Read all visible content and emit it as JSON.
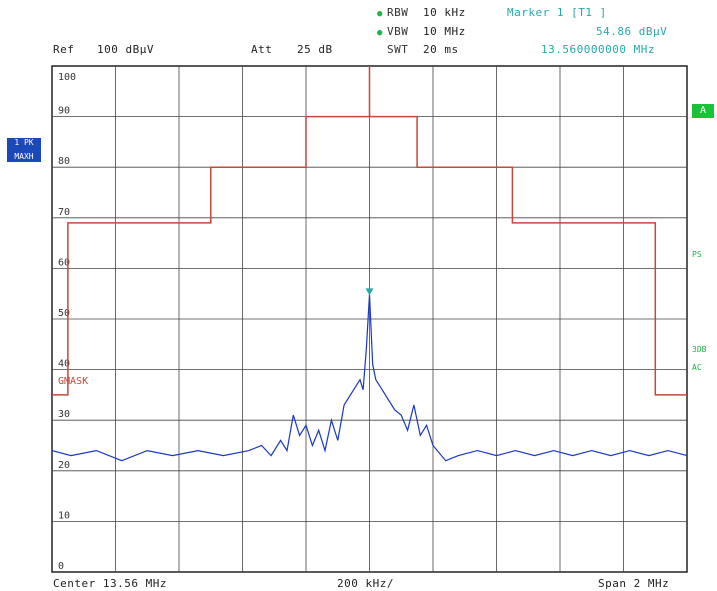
{
  "header": {
    "rbw_label": "RBW",
    "rbw_value": "10 kHz",
    "vbw_label": "VBW",
    "vbw_value": "10 MHz",
    "swt_label": "SWT",
    "swt_value": "20 ms",
    "ref_label": "Ref",
    "ref_value": "100 dBµV",
    "att_label": "Att",
    "att_value": "25 dB",
    "marker_title": "Marker 1 [T1 ]",
    "marker_level": "54.86 dBµV",
    "marker_freq": "13.560000000 MHz"
  },
  "sidebar_left": {
    "trace_label_1": "1 PK",
    "trace_label_2": "MAXH"
  },
  "sidebar_right": {
    "a_label": "A",
    "ps_label": "PS",
    "thirddb_label": "3DB",
    "ac_label": "AC"
  },
  "footer": {
    "center": "Center 13.56 MHz",
    "div": "200 kHz/",
    "span": "Span 2 MHz"
  },
  "mask_label": "GMASK",
  "colors": {
    "trace": "#1a38c0",
    "mask": "#c8473a",
    "marker": "#2aa7a7",
    "grid": "#333333"
  },
  "chart_data": {
    "type": "line",
    "title": "",
    "xlabel": "",
    "ylabel": "",
    "x_range_mhz": [
      12.56,
      14.56
    ],
    "ylim": [
      0,
      100
    ],
    "y_ticks": [
      100,
      90,
      80,
      70,
      60,
      50,
      40,
      30,
      20,
      10,
      0
    ],
    "y_tick_labels": [
      "100",
      "90",
      "80",
      "70",
      "60",
      "50",
      "40",
      "30",
      "20",
      "10",
      "0"
    ],
    "grid": true,
    "marker": {
      "x_mhz": 13.56,
      "y": 54.86
    },
    "series": [
      {
        "role": "mask",
        "x_mhz": [
          12.56,
          12.61,
          12.61,
          13.06,
          13.06,
          13.36,
          13.36,
          13.56,
          13.56,
          13.56,
          13.56,
          13.71,
          13.71,
          14.01,
          14.01,
          14.46,
          14.46,
          14.56
        ],
        "y": [
          35,
          35,
          69,
          69,
          80,
          80,
          90,
          90,
          100,
          100,
          90,
          90,
          80,
          80,
          69,
          69,
          35,
          35
        ]
      },
      {
        "role": "trace",
        "x_mhz": [
          12.56,
          12.62,
          12.7,
          12.78,
          12.86,
          12.94,
          13.02,
          13.1,
          13.18,
          13.22,
          13.25,
          13.28,
          13.3,
          13.32,
          13.34,
          13.36,
          13.38,
          13.4,
          13.42,
          13.44,
          13.46,
          13.48,
          13.5,
          13.52,
          13.53,
          13.54,
          13.55,
          13.56,
          13.57,
          13.58,
          13.6,
          13.62,
          13.64,
          13.66,
          13.68,
          13.7,
          13.72,
          13.74,
          13.76,
          13.8,
          13.84,
          13.9,
          13.96,
          14.02,
          14.08,
          14.14,
          14.2,
          14.26,
          14.32,
          14.38,
          14.44,
          14.5,
          14.56
        ],
        "y": [
          24,
          23,
          24,
          22,
          24,
          23,
          24,
          23,
          24,
          25,
          23,
          26,
          24,
          31,
          27,
          29,
          25,
          28,
          24,
          30,
          26,
          33,
          35,
          37,
          38,
          36,
          44,
          54.86,
          41,
          38,
          36,
          34,
          32,
          31,
          28,
          33,
          27,
          29,
          25,
          22,
          23,
          24,
          23,
          24,
          23,
          24,
          23,
          24,
          23,
          24,
          23,
          24,
          23
        ]
      }
    ]
  }
}
